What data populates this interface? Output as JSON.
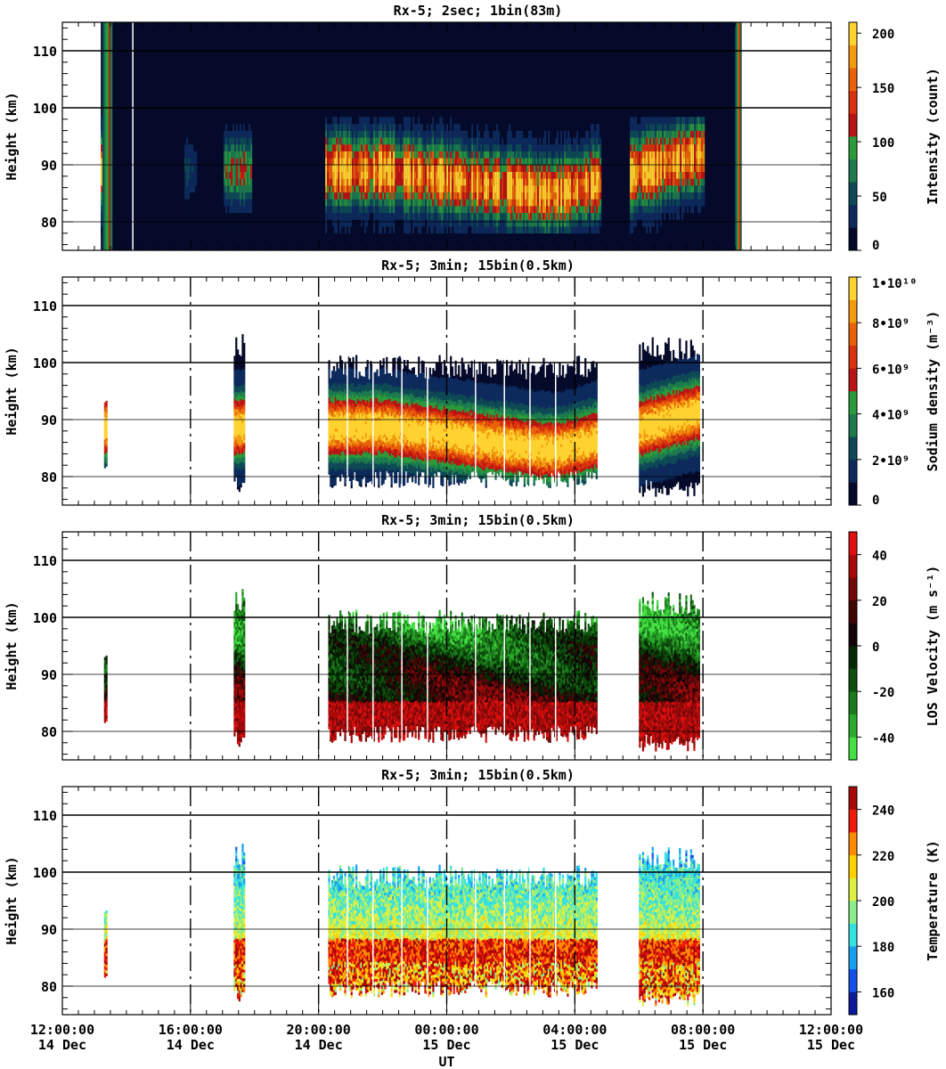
{
  "chart_data": {
    "type": "heatmap",
    "xlabel": "UT",
    "x_ticks": [
      {
        "time": "12:00:00",
        "date": "14 Dec"
      },
      {
        "time": "16:00:00",
        "date": "14 Dec"
      },
      {
        "time": "20:00:00",
        "date": "14 Dec"
      },
      {
        "time": "00:00:00",
        "date": "15 Dec"
      },
      {
        "time": "04:00:00",
        "date": "15 Dec"
      },
      {
        "time": "08:00:00",
        "date": "15 Dec"
      },
      {
        "time": "12:00:00",
        "date": "15 Dec"
      }
    ],
    "xlim_ut_hours": [
      12,
      36
    ],
    "dashed_vertical_lines_ut_hours": [
      16,
      20,
      24,
      28,
      32
    ],
    "ylabel": "Height (km)",
    "ylim": [
      75,
      115
    ],
    "y_ticks": [
      80,
      90,
      100,
      110
    ],
    "panels": [
      {
        "id": "intensity",
        "title": "Rx-5;  2sec; 1bin(83m)",
        "colorbar_label": "Intensity (count)",
        "colorbar_ticks": [
          "0",
          "50",
          "100",
          "150",
          "200"
        ],
        "range": [
          0,
          210
        ],
        "colors": [
          "#050a2a",
          "#0d2a5c",
          "#0e4a55",
          "#1d7a4e",
          "#2a9a3a",
          "#b81414",
          "#d8320e",
          "#e8620a",
          "#f29a10",
          "#ffd230"
        ],
        "background": "#050a2a",
        "data_extent_ut_hours": [
          13.2,
          33.2
        ],
        "layer_km": [
          78,
          97
        ],
        "peak_km": 88
      },
      {
        "id": "density",
        "title": "Rx-5; 3min; 15bin(0.5km)",
        "colorbar_label": "Sodium density (m⁻³)",
        "colorbar_ticks": [
          "0",
          "2•10⁹",
          "4•10⁹",
          "6•10⁹",
          "8•10⁹",
          "1•10¹⁰"
        ],
        "range": [
          0,
          10000000000.0
        ],
        "colors": [
          "#050a2a",
          "#0d2a5c",
          "#0e4a55",
          "#1d7a4e",
          "#2a9a3a",
          "#b81414",
          "#d8320e",
          "#e8620a",
          "#f29a10",
          "#ffd230"
        ],
        "peak_km": 89
      },
      {
        "id": "velocity",
        "title": "Rx-5; 3min; 15bin(0.5km)",
        "colorbar_label": "LOS Velocity (m s⁻¹)",
        "colorbar_ticks": [
          "-40",
          "-20",
          "0",
          "20",
          "40"
        ],
        "range": [
          -50,
          50
        ],
        "colors": [
          "#44e044",
          "#2aaa2a",
          "#1c7a1c",
          "#0e4e0e",
          "#052a05",
          "#140606",
          "#400606",
          "#720808",
          "#a80a0a",
          "#e01010"
        ]
      },
      {
        "id": "temperature",
        "title": "Rx-5; 3min; 15bin(0.5km)",
        "colorbar_label": "Temperature (K)",
        "colorbar_ticks": [
          "160",
          "180",
          "200",
          "220",
          "240"
        ],
        "range": [
          150,
          250
        ],
        "colors": [
          "#0a1a9a",
          "#1450ea",
          "#1aa0f0",
          "#34e0e0",
          "#8aee8a",
          "#e0f040",
          "#ffd000",
          "#ff8a00",
          "#f01a0a",
          "#a80808"
        ]
      }
    ],
    "data_blocks_ut_hours": [
      {
        "start": 13.3,
        "end": 13.4,
        "bottom_km": 82,
        "top_km": 94
      },
      {
        "start": 17.35,
        "end": 17.7,
        "bottom_km": 78.5,
        "top_km": 103
      },
      {
        "start": 20.3,
        "end": 28.7,
        "bottom_km": 79.5,
        "top_km": 99
      },
      {
        "start": 30.0,
        "end": 31.9,
        "bottom_km": 78,
        "top_km": 102
      }
    ]
  }
}
